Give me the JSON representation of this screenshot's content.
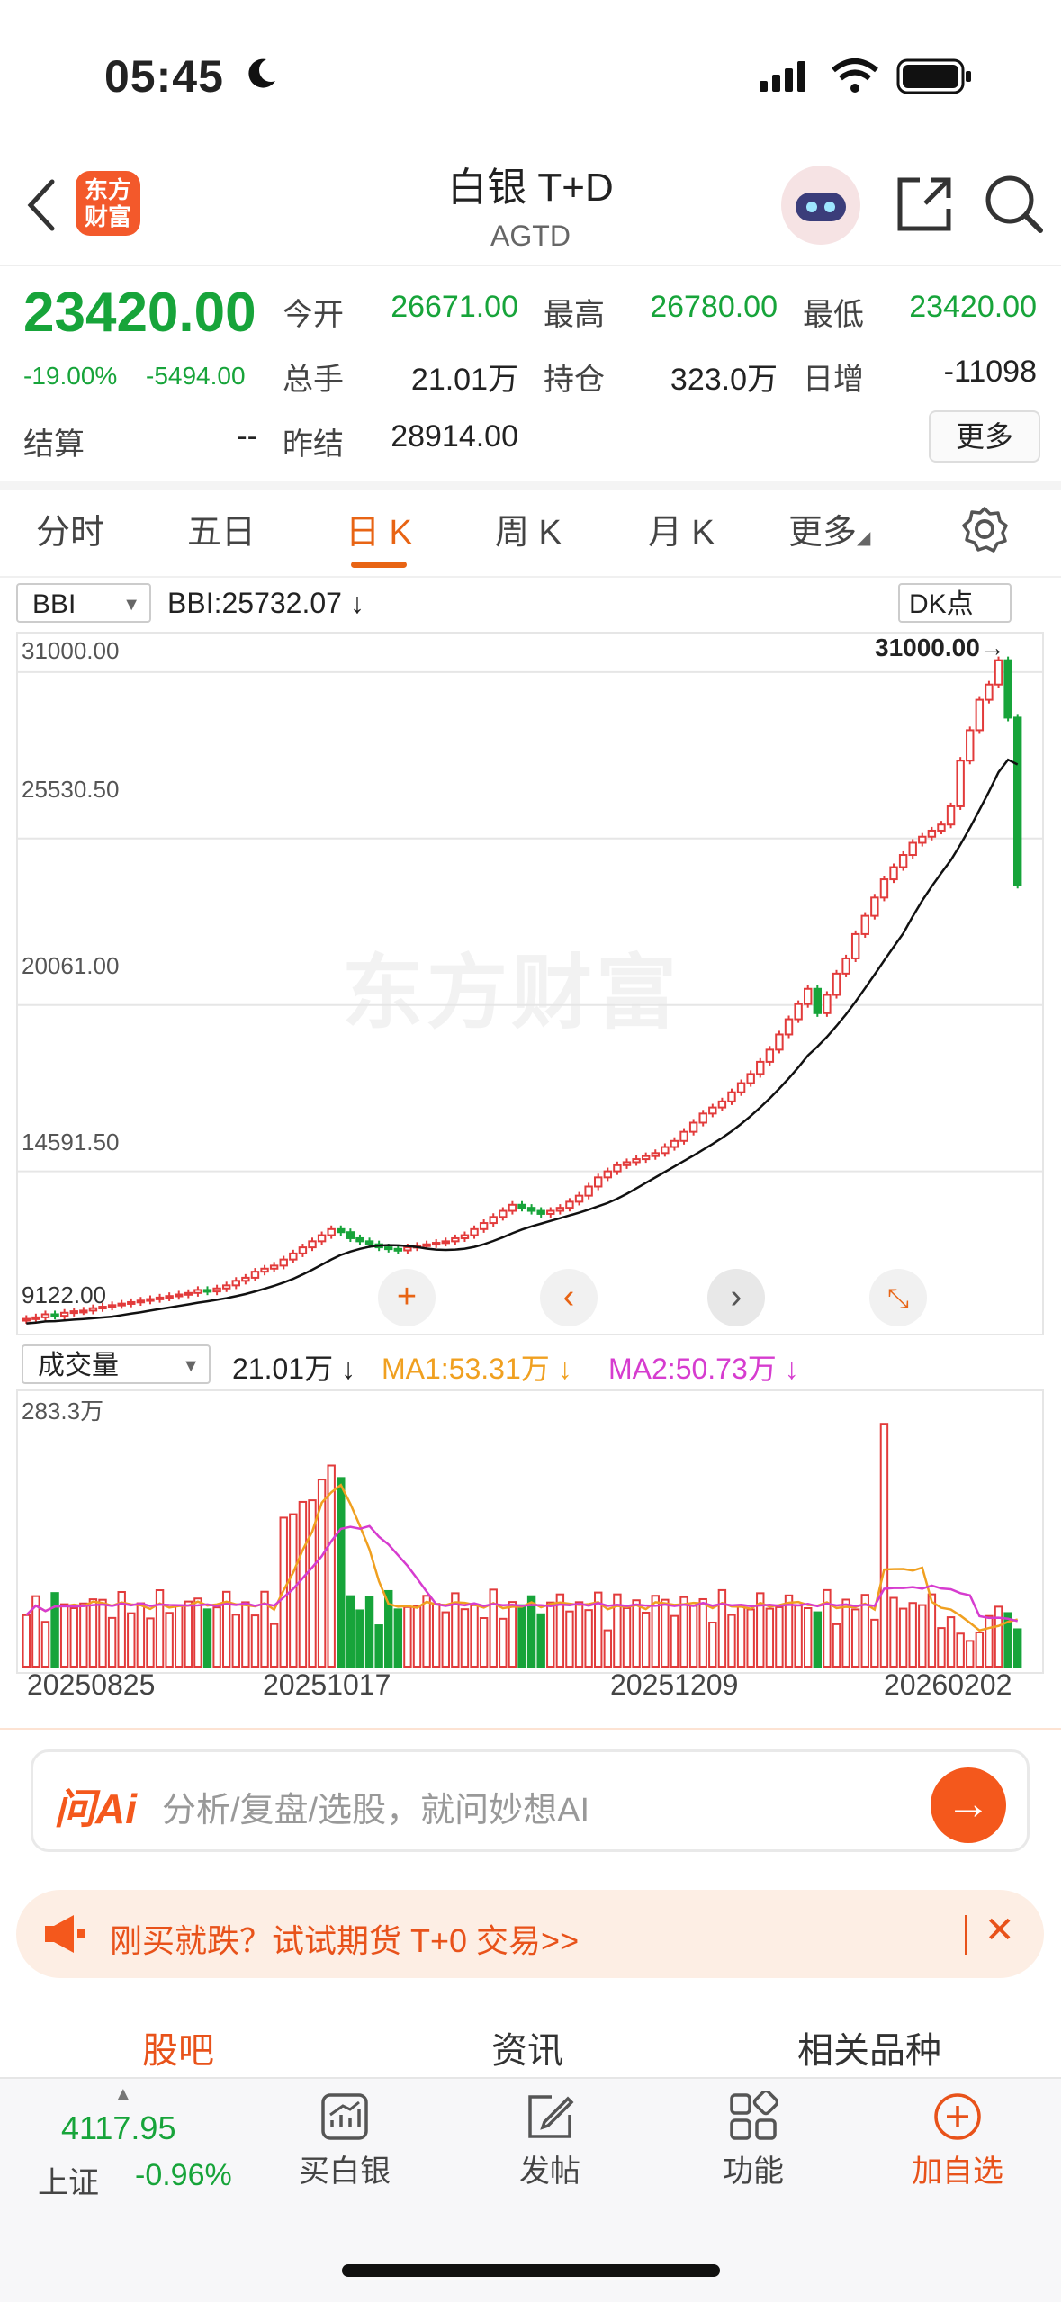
{
  "status_bar": {
    "time": "05:45"
  },
  "header": {
    "title": "白银 T+D",
    "subtitle": "AGTD",
    "logo_text_1": "东方",
    "logo_text_2": "财富"
  },
  "quote": {
    "price": "23420.00",
    "change_pct": "-19.00%",
    "change_abs": "-5494.00",
    "open_label": "今开",
    "open": "26671.00",
    "high_label": "最高",
    "high": "26780.00",
    "low_label": "最低",
    "low": "23420.00",
    "volume_label": "总手",
    "volume": "21.01万",
    "position_label": "持仓",
    "position": "323.0万",
    "daily_inc_label": "日增",
    "daily_inc": "-11098",
    "settle_label": "结算",
    "settle": "--",
    "prev_settle_label": "昨结",
    "prev_settle": "28914.00",
    "more_button": "更多"
  },
  "tabs": [
    {
      "label": "分时"
    },
    {
      "label": "五日"
    },
    {
      "label": "日 K"
    },
    {
      "label": "周 K"
    },
    {
      "label": "月 K"
    },
    {
      "label": "更多"
    }
  ],
  "indicator": {
    "select": "BBI",
    "value_text": "BBI:25732.07",
    "arrow": "↓",
    "dk_button": "DK点"
  },
  "chart_data": {
    "type": "candlestick",
    "y_ticks": [
      "31000.00",
      "25530.50",
      "20061.00",
      "14591.50"
    ],
    "max_label": "31000.00",
    "start_label": "9122.00",
    "x_dates": [
      "20250825",
      "20251017",
      "20251209",
      "20260202"
    ],
    "watermark": "东方财富",
    "closes": [
      9150,
      9200,
      9300,
      9250,
      9350,
      9400,
      9420,
      9500,
      9550,
      9600,
      9650,
      9700,
      9750,
      9800,
      9850,
      9900,
      9950,
      10000,
      10100,
      10050,
      10150,
      10250,
      10400,
      10500,
      10700,
      10800,
      10900,
      11100,
      11300,
      11500,
      11700,
      11900,
      12100,
      12000,
      11800,
      11700,
      11600,
      11500,
      11450,
      11400,
      11500,
      11550,
      11600,
      11650,
      11700,
      11800,
      11900,
      12100,
      12300,
      12500,
      12700,
      12900,
      12800,
      12700,
      12600,
      12700,
      12800,
      13000,
      13200,
      13500,
      13800,
      14000,
      14200,
      14300,
      14400,
      14500,
      14600,
      14800,
      15000,
      15300,
      15600,
      15900,
      16100,
      16300,
      16600,
      16900,
      17200,
      17600,
      18000,
      18500,
      19000,
      19500,
      20000,
      19200,
      19800,
      20500,
      21000,
      21800,
      22400,
      23000,
      23600,
      24000,
      24400,
      24800,
      25000,
      25200,
      25400,
      26000,
      27500,
      28500,
      29500,
      30000,
      30800,
      28914,
      23420
    ]
  },
  "volume_panel": {
    "select": "成交量",
    "value": "21.01万",
    "value_arrow": "↓",
    "ma1": "MA1:53.31万",
    "ma1_arrow": "↓",
    "ma2": "MA2:50.73万",
    "ma2_arrow": "↓",
    "max_label": "283.3万",
    "colors": {
      "ma1": "#f0a020",
      "ma2": "#d63ccf",
      "up": "#e23b3b",
      "down": "#17a43a"
    }
  },
  "ai_box": {
    "brand": "问Ai",
    "placeholder": "分析/复盘/选股，就问妙想AI"
  },
  "promo": {
    "text": "刚买就跌？试试期货 T+0 交易>>"
  },
  "bottom_tabs": [
    {
      "label": "股吧"
    },
    {
      "label": "资讯"
    },
    {
      "label": "相关品种"
    }
  ],
  "index_ticker": {
    "value": "4117.95",
    "name": "上证",
    "change": "-0.96%"
  },
  "nav": [
    {
      "label": "买白银",
      "icon": "chart-up-icon"
    },
    {
      "label": "发帖",
      "icon": "edit-icon"
    },
    {
      "label": "功能",
      "icon": "grid-icon"
    },
    {
      "label": "加自选",
      "icon": "add-circle-icon"
    }
  ]
}
